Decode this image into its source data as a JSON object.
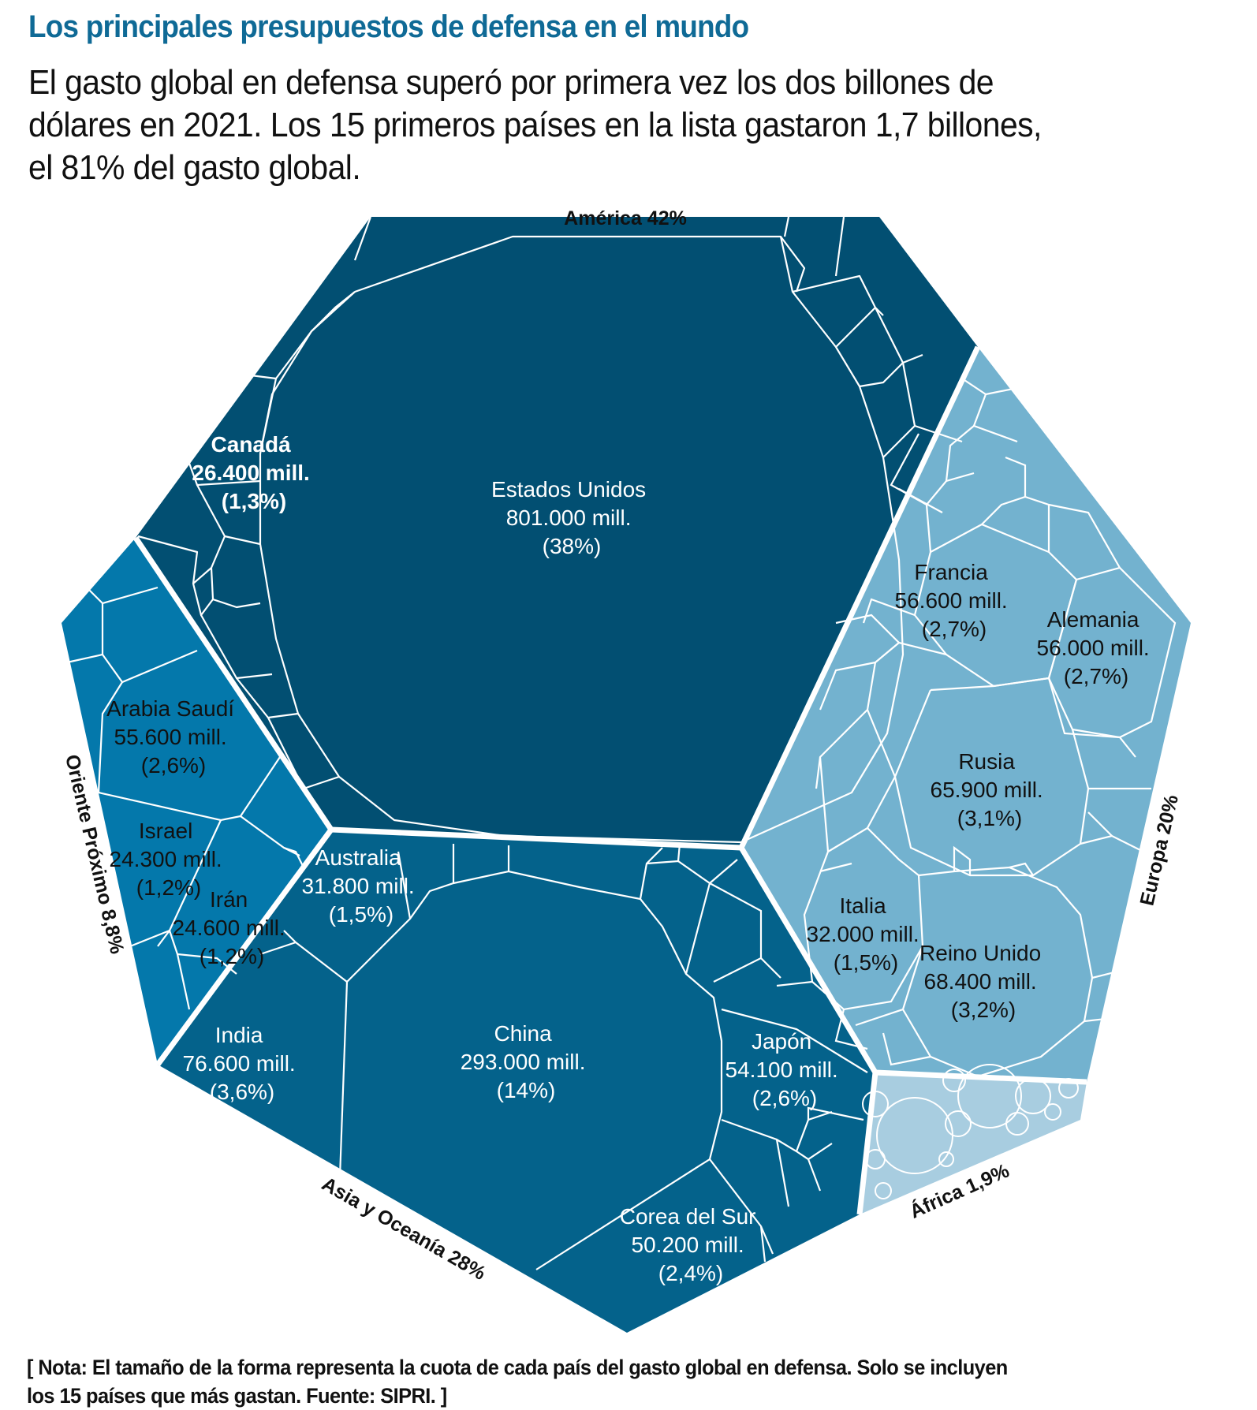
{
  "header": {
    "title": "Los principales presupuestos de defensa en el mundo",
    "subtitle_lines": [
      "El gasto global en defensa superó por primera vez los dos billones de",
      "dólares en 2021. Los 15 primeros países en la lista gastaron 1,7 billones,",
      "el 81% del gasto global."
    ]
  },
  "footer": {
    "note_lines": [
      "[ Nota: El tamaño de la forma representa la cuota de cada país del gasto global en defensa. Solo se incluyen",
      "los 15 países que más gastan. Fuente: SIPRI. ]"
    ]
  },
  "colors": {
    "america": "#024f72",
    "asia": "#04628b",
    "oriente": "#0478ab",
    "europa": "#73b2cf",
    "africa": "#a8cde0",
    "title": "#0f6a96",
    "label_dark": "#111111",
    "label_light": "#ffffff"
  },
  "chart_data": {
    "type": "voronoi-treemap",
    "title": "Los principales presupuestos de defensa en el mundo",
    "unit": "millones de dólares",
    "regions": [
      {
        "name": "América",
        "label": "América 42%",
        "share_pct": 42
      },
      {
        "name": "Europa",
        "label": "Europa 20%",
        "share_pct": 20
      },
      {
        "name": "África",
        "label": "África 1,9%",
        "share_pct": 1.9
      },
      {
        "name": "Asia y Oceanía",
        "label": "Asia y Oceanía 28%",
        "share_pct": 28
      },
      {
        "name": "Oriente Próximo",
        "label": "Oriente Próximo 8,8%",
        "share_pct": 8.8
      }
    ],
    "countries": [
      {
        "name": "Estados Unidos",
        "region": "América",
        "value_label": "801.000 mill.",
        "share_label": "(38%)",
        "value": 801000,
        "share_pct": 38
      },
      {
        "name": "Canadá",
        "region": "América",
        "value_label": "26.400 mill.",
        "share_label": "(1,3%)",
        "value": 26400,
        "share_pct": 1.3
      },
      {
        "name": "China",
        "region": "Asia y Oceanía",
        "value_label": "293.000 mill.",
        "share_label": "(14%)",
        "value": 293000,
        "share_pct": 14
      },
      {
        "name": "India",
        "region": "Asia y Oceanía",
        "value_label": "76.600 mill.",
        "share_label": "(3,6%)",
        "value": 76600,
        "share_pct": 3.6
      },
      {
        "name": "Japón",
        "region": "Asia y Oceanía",
        "value_label": "54.100 mill.",
        "share_label": "(2,6%)",
        "value": 54100,
        "share_pct": 2.6
      },
      {
        "name": "Corea del Sur",
        "region": "Asia y Oceanía",
        "value_label": "50.200 mill.",
        "share_label": "(2,4%)",
        "value": 50200,
        "share_pct": 2.4
      },
      {
        "name": "Australia",
        "region": "Asia y Oceanía",
        "value_label": "31.800 mill.",
        "share_label": "(1,5%)",
        "value": 31800,
        "share_pct": 1.5
      },
      {
        "name": "Reino Unido",
        "region": "Europa",
        "value_label": "68.400 mill.",
        "share_label": "(3,2%)",
        "value": 68400,
        "share_pct": 3.2
      },
      {
        "name": "Rusia",
        "region": "Europa",
        "value_label": "65.900 mill.",
        "share_label": "(3,1%)",
        "value": 65900,
        "share_pct": 3.1
      },
      {
        "name": "Francia",
        "region": "Europa",
        "value_label": "56.600 mill.",
        "share_label": "(2,7%)",
        "value": 56600,
        "share_pct": 2.7
      },
      {
        "name": "Alemania",
        "region": "Europa",
        "value_label": "56.000 mill.",
        "share_label": "(2,7%)",
        "value": 56000,
        "share_pct": 2.7
      },
      {
        "name": "Italia",
        "region": "Europa",
        "value_label": "32.000 mill.",
        "share_label": "(1,5%)",
        "value": 32000,
        "share_pct": 1.5
      },
      {
        "name": "Arabia Saudí",
        "region": "Oriente Próximo",
        "value_label": "55.600 mill.",
        "share_label": "(2,6%)",
        "value": 55600,
        "share_pct": 2.6
      },
      {
        "name": "Irán",
        "region": "Oriente Próximo",
        "value_label": "24.600 mill.",
        "share_label": "(1,2%)",
        "value": 24600,
        "share_pct": 1.2
      },
      {
        "name": "Israel",
        "region": "Oriente Próximo",
        "value_label": "24.300 mill.",
        "share_label": "(1,2%)",
        "value": 24300,
        "share_pct": 1.2
      }
    ]
  }
}
